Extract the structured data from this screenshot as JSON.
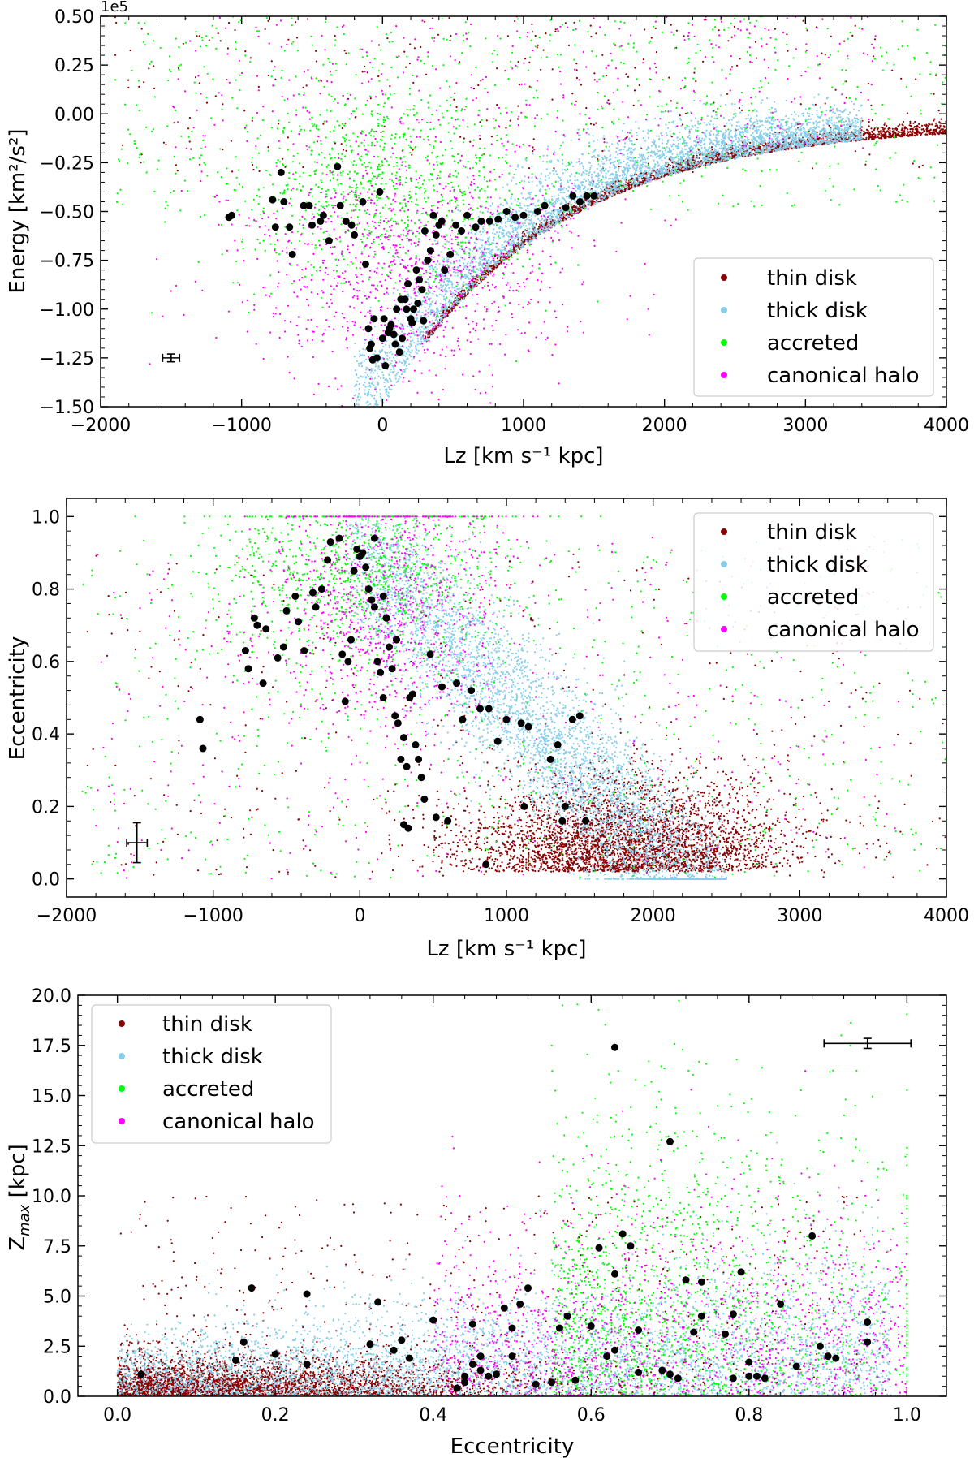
{
  "chart_data": [
    {
      "type": "scatter",
      "id": "energy_lz",
      "xlabel": "Lz [km s⁻¹ kpc]",
      "ylabel": "Energy [km²/s²]",
      "offset_text": "1e5",
      "xlim": [
        -2000,
        4000
      ],
      "ylim": [
        -1.5,
        0.5
      ],
      "x_ticks": [
        -2000,
        -1000,
        0,
        1000,
        2000,
        3000,
        4000
      ],
      "x_tick_labels": [
        "−2000",
        "−1000",
        "0",
        "1000",
        "2000",
        "3000",
        "4000"
      ],
      "y_ticks": [
        -1.5,
        -1.25,
        -1.0,
        -0.75,
        -0.5,
        -0.25,
        0.0,
        0.25,
        0.5
      ],
      "y_tick_labels": [
        "−1.50",
        "−1.25",
        "−1.00",
        "−0.75",
        "−0.50",
        "−0.25",
        "0.00",
        "0.25",
        "0.50"
      ],
      "legend_position": "lower-right",
      "legend": [
        "thin disk",
        "thick disk",
        "accreted",
        "canonical halo"
      ],
      "error_bar": {
        "x": -1500,
        "y": -1.25,
        "xerr": 60,
        "yerr": 0.02
      },
      "highlighted_stars": {
        "x": [
          -1090,
          -1070,
          -780,
          -760,
          -720,
          -700,
          -660,
          -640,
          -560,
          -520,
          -500,
          -440,
          -420,
          -380,
          -320,
          -300,
          -260,
          -220,
          -200,
          -140,
          -120,
          -100,
          -80,
          -60,
          -40,
          -20,
          0,
          20,
          40,
          60,
          80,
          100,
          120,
          140,
          160,
          180,
          200,
          220,
          240,
          260,
          280,
          300,
          320,
          340,
          360,
          380,
          400,
          420,
          440,
          480,
          520,
          560,
          600,
          660,
          700,
          760,
          820,
          880,
          940,
          1000,
          1100,
          1150,
          1300,
          1350,
          1400,
          1450,
          1500,
          -90,
          -70,
          10,
          50,
          90,
          130,
          170,
          210,
          250,
          290
        ],
        "y": [
          -0.53,
          -0.52,
          -0.44,
          -0.58,
          -0.3,
          -0.45,
          -0.58,
          -0.72,
          -0.47,
          -0.47,
          -0.57,
          -0.55,
          -0.52,
          -0.65,
          -0.27,
          -0.47,
          -0.55,
          -0.57,
          -0.62,
          -0.45,
          -0.77,
          -1.1,
          -1.18,
          -1.05,
          -1.25,
          -0.4,
          -1.15,
          -1.29,
          -1.12,
          -1.08,
          -1.13,
          -1.0,
          -1.22,
          -1.15,
          -0.95,
          -0.87,
          -1.05,
          -1.0,
          -0.8,
          -0.85,
          -0.9,
          -0.6,
          -0.75,
          -0.7,
          -0.52,
          -0.62,
          -0.57,
          -0.55,
          -0.8,
          -0.72,
          -0.57,
          -0.6,
          -0.52,
          -0.58,
          -0.55,
          -0.55,
          -0.54,
          -0.5,
          -0.53,
          -0.52,
          -0.5,
          -0.47,
          -0.48,
          -0.42,
          -0.45,
          -0.42,
          -0.42,
          -1.2,
          -1.26,
          -1.05,
          -1.1,
          -1.18,
          -0.95,
          -1.0,
          -1.07,
          -0.97,
          -1.06
        ]
      },
      "populations": [
        {
          "name": "thin disk",
          "color": "#8b0000",
          "points": 2600
        },
        {
          "name": "thick disk",
          "color": "#87ceeb",
          "points": 4200
        },
        {
          "name": "accreted",
          "color": "#00ff00",
          "points": 1500
        },
        {
          "name": "canonical halo",
          "color": "#ff00ff",
          "points": 1400
        }
      ]
    },
    {
      "type": "scatter",
      "id": "ecc_lz",
      "xlabel": "Lz [km s⁻¹ kpc]",
      "ylabel": "Eccentricity",
      "xlim": [
        -2000,
        4000
      ],
      "ylim": [
        -0.05,
        1.05
      ],
      "x_ticks": [
        -2000,
        -1000,
        0,
        1000,
        2000,
        3000,
        4000
      ],
      "x_tick_labels": [
        "−2000",
        "−1000",
        "0",
        "1000",
        "2000",
        "3000",
        "4000"
      ],
      "y_ticks": [
        0.0,
        0.2,
        0.4,
        0.6,
        0.8,
        1.0
      ],
      "y_tick_labels": [
        "0.0",
        "0.2",
        "0.4",
        "0.6",
        "0.8",
        "1.0"
      ],
      "legend_position": "upper-right",
      "legend": [
        "thin disk",
        "thick disk",
        "accreted",
        "canonical halo"
      ],
      "error_bar": {
        "x": -1520,
        "y": 0.1,
        "xerr": 70,
        "yerr": 0.055
      },
      "highlighted_stars": {
        "x": [
          -1090,
          -1070,
          -780,
          -760,
          -720,
          -700,
          -660,
          -640,
          -560,
          -520,
          -500,
          -440,
          -420,
          -380,
          -320,
          -300,
          -260,
          -220,
          -200,
          -140,
          -120,
          -100,
          -80,
          -60,
          -40,
          -20,
          0,
          20,
          40,
          60,
          80,
          100,
          120,
          140,
          160,
          180,
          200,
          220,
          240,
          260,
          280,
          300,
          320,
          340,
          360,
          380,
          400,
          420,
          440,
          480,
          520,
          560,
          600,
          660,
          700,
          760,
          820,
          880,
          940,
          1000,
          1100,
          1150,
          1300,
          1350,
          1400,
          1450,
          1500,
          100,
          160,
          250,
          300,
          330,
          860,
          1120,
          1380,
          1540
        ],
        "y": [
          0.44,
          0.36,
          0.63,
          0.58,
          0.72,
          0.7,
          0.54,
          0.69,
          0.61,
          0.64,
          0.74,
          0.78,
          0.71,
          0.63,
          0.79,
          0.75,
          0.8,
          0.88,
          0.93,
          0.94,
          0.62,
          0.49,
          0.6,
          0.66,
          0.85,
          0.91,
          0.89,
          0.9,
          0.86,
          0.8,
          0.77,
          0.75,
          0.6,
          0.57,
          0.5,
          0.72,
          0.64,
          0.58,
          0.45,
          0.43,
          0.33,
          0.39,
          0.31,
          0.5,
          0.51,
          0.37,
          0.33,
          0.28,
          0.22,
          0.62,
          0.17,
          0.53,
          0.16,
          0.54,
          0.44,
          0.52,
          0.47,
          0.47,
          0.38,
          0.44,
          0.43,
          0.42,
          0.33,
          0.37,
          0.2,
          0.44,
          0.45,
          0.94,
          0.78,
          0.66,
          0.15,
          0.14,
          0.04,
          0.2,
          0.16,
          0.16
        ]
      },
      "populations": [
        {
          "name": "thin disk",
          "color": "#8b0000",
          "points": 3800
        },
        {
          "name": "thick disk",
          "color": "#87ceeb",
          "points": 4500
        },
        {
          "name": "accreted",
          "color": "#00ff00",
          "points": 1500
        },
        {
          "name": "canonical halo",
          "color": "#ff00ff",
          "points": 1300
        }
      ]
    },
    {
      "type": "scatter",
      "id": "zmax_ecc",
      "xlabel": "Eccentricity",
      "ylabel": "Z",
      "ylabel_subscript": "max",
      "ylabel_suffix": " [kpc]",
      "xlim": [
        -0.05,
        1.05
      ],
      "ylim": [
        0,
        20
      ],
      "x_ticks": [
        0.0,
        0.2,
        0.4,
        0.6,
        0.8,
        1.0
      ],
      "x_tick_labels": [
        "0.0",
        "0.2",
        "0.4",
        "0.6",
        "0.8",
        "1.0"
      ],
      "y_ticks": [
        0.0,
        2.5,
        5.0,
        7.5,
        10.0,
        12.5,
        15.0,
        17.5,
        20.0
      ],
      "y_tick_labels": [
        "0.0",
        "2.5",
        "5.0",
        "7.5",
        "10.0",
        "12.5",
        "15.0",
        "17.5",
        "20.0"
      ],
      "legend_position": "upper-left",
      "legend": [
        "thin disk",
        "thick disk",
        "accreted",
        "canonical halo"
      ],
      "error_bar": {
        "x": 0.95,
        "y": 17.6,
        "xerr": 0.055,
        "yerr": 0.25
      },
      "highlighted_stars": {
        "x": [
          0.63,
          0.7,
          0.88,
          0.61,
          0.64,
          0.65,
          0.63,
          0.17,
          0.24,
          0.33,
          0.52,
          0.51,
          0.49,
          0.57,
          0.72,
          0.74,
          0.79,
          0.95,
          0.84,
          0.78,
          0.74,
          0.45,
          0.46,
          0.5,
          0.56,
          0.6,
          0.63,
          0.66,
          0.69,
          0.71,
          0.73,
          0.77,
          0.8,
          0.81,
          0.82,
          0.86,
          0.9,
          0.91,
          0.95,
          0.89,
          0.15,
          0.16,
          0.2,
          0.24,
          0.32,
          0.35,
          0.36,
          0.37,
          0.4,
          0.44,
          0.45,
          0.46,
          0.47,
          0.48,
          0.5,
          0.53,
          0.55,
          0.58,
          0.62,
          0.66,
          0.7,
          0.03,
          0.44,
          0.43,
          0.78,
          0.8
        ],
        "y": [
          17.4,
          12.7,
          8.0,
          7.4,
          8.1,
          7.5,
          6.1,
          5.4,
          5.1,
          4.7,
          5.4,
          4.6,
          4.4,
          4.0,
          5.8,
          5.7,
          6.2,
          3.7,
          4.6,
          4.1,
          4.0,
          3.6,
          2.0,
          3.4,
          3.4,
          3.5,
          2.3,
          3.3,
          1.3,
          0.9,
          3.2,
          3.1,
          1.7,
          1.0,
          0.9,
          1.5,
          2.0,
          1.9,
          2.7,
          2.5,
          1.8,
          2.7,
          2.1,
          1.6,
          2.6,
          2.3,
          2.8,
          1.9,
          3.8,
          1.0,
          1.6,
          1.3,
          1.0,
          1.1,
          2.0,
          0.6,
          0.7,
          0.8,
          2.0,
          1.2,
          1.1,
          1.1,
          0.7,
          0.4,
          0.9,
          1.0
        ]
      },
      "populations": [
        {
          "name": "thin disk",
          "color": "#8b0000",
          "points": 3800
        },
        {
          "name": "thick disk",
          "color": "#87ceeb",
          "points": 4500
        },
        {
          "name": "accreted",
          "color": "#00ff00",
          "points": 1500
        },
        {
          "name": "canonical halo",
          "color": "#ff00ff",
          "points": 1300
        }
      ]
    }
  ]
}
